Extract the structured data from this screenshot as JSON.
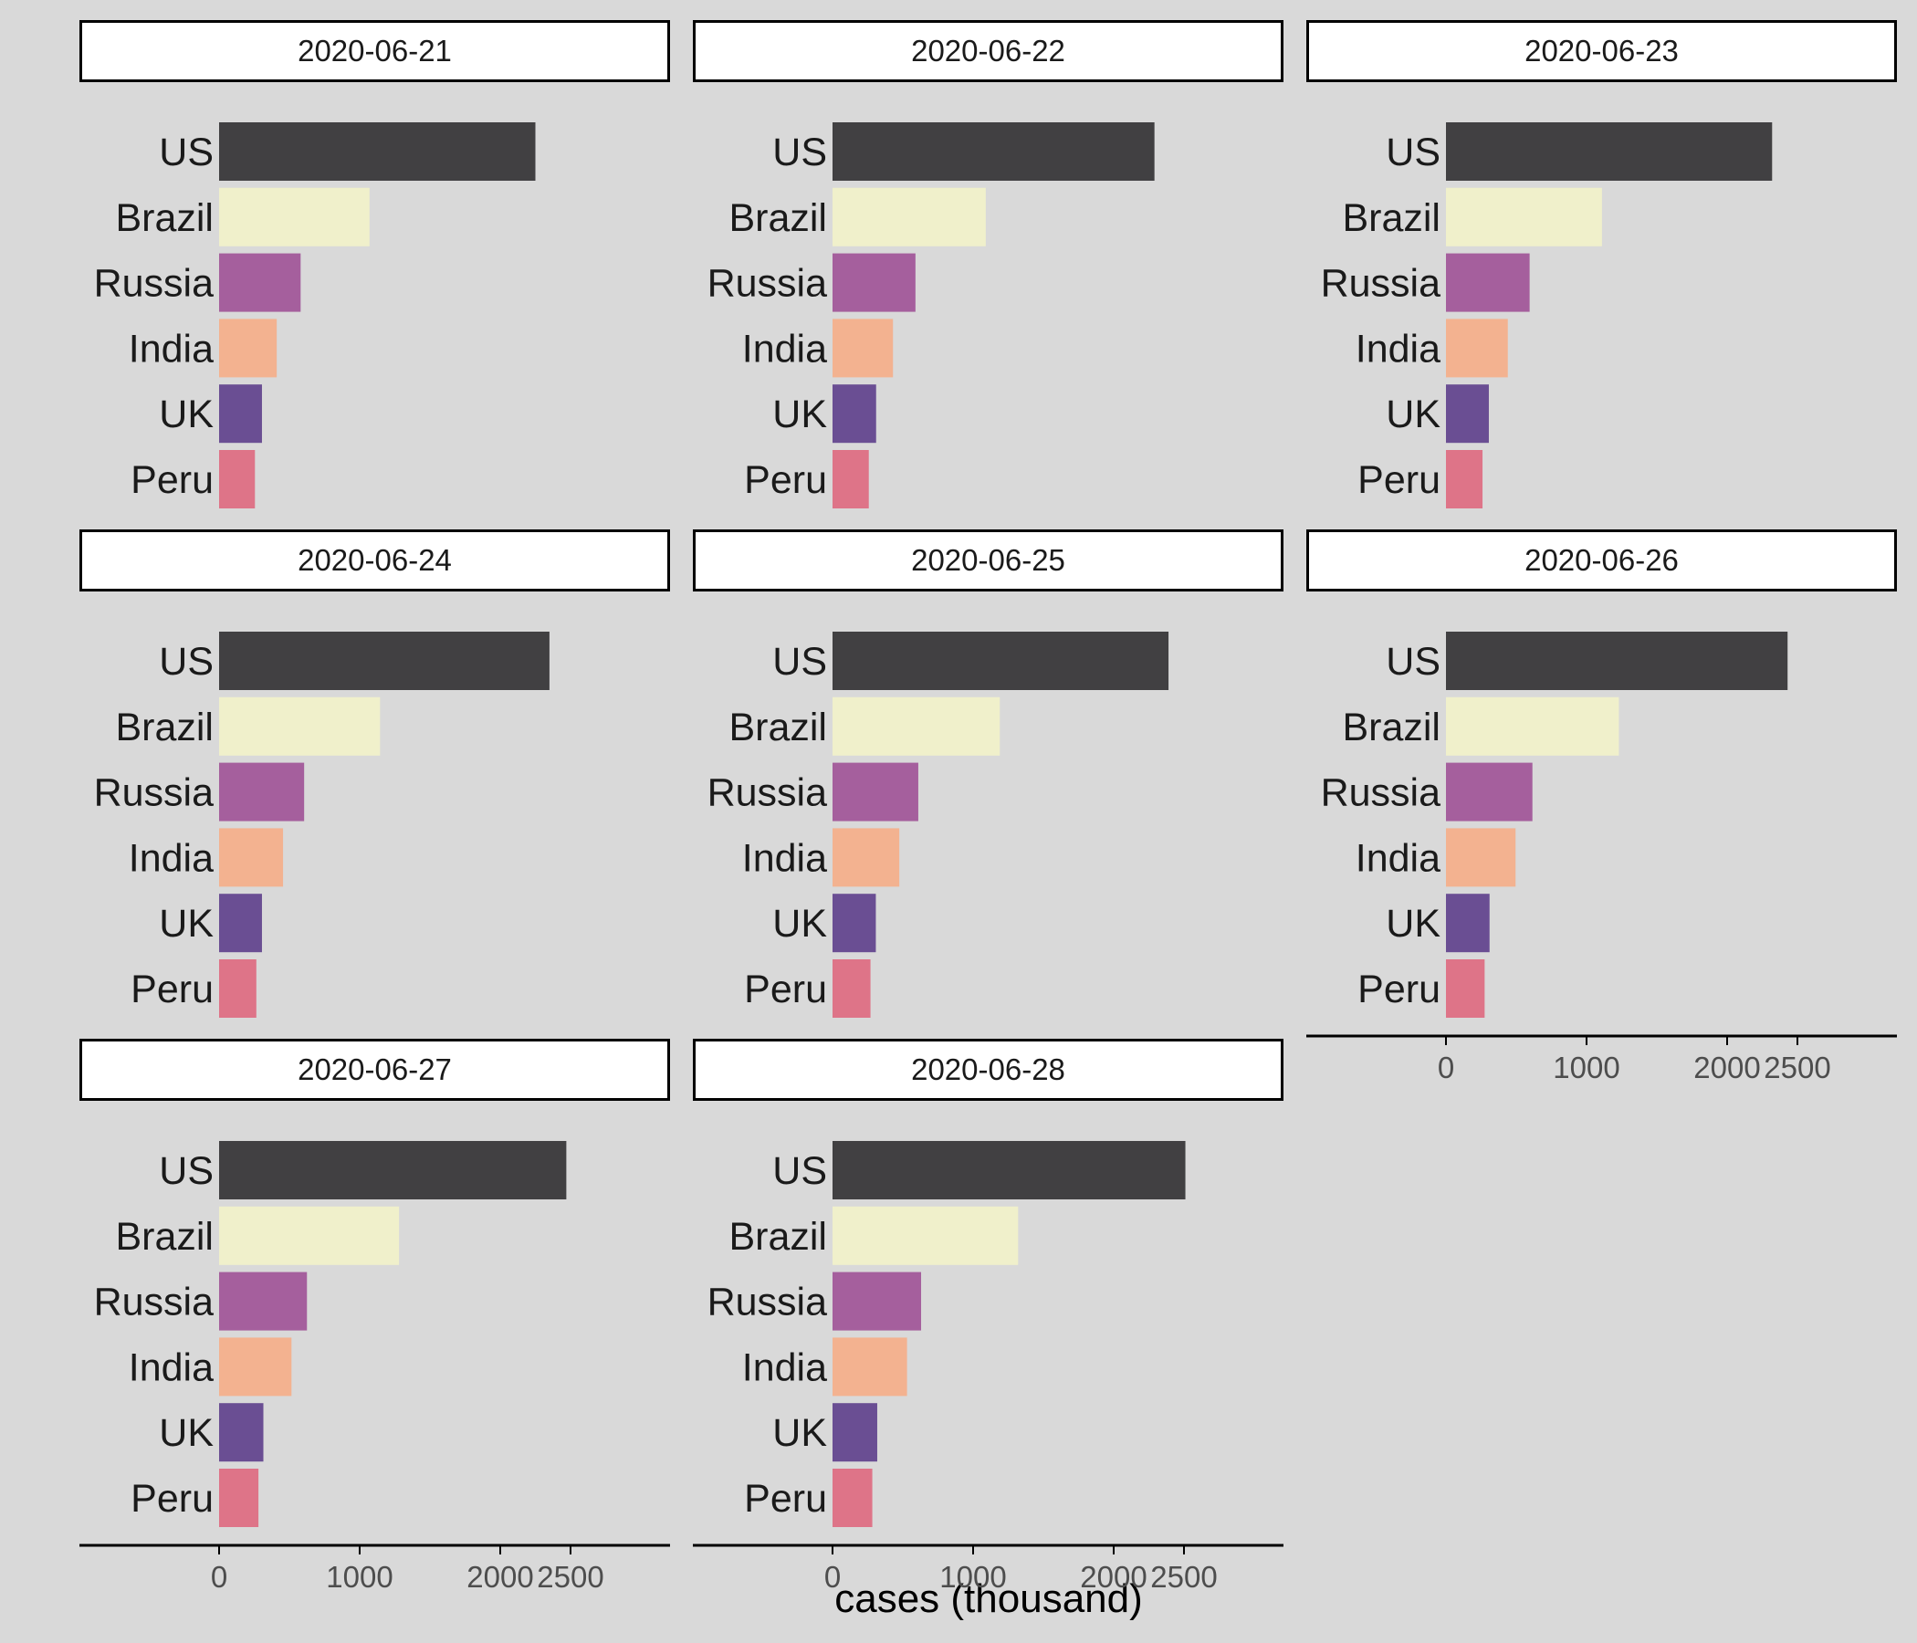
{
  "chart_data": {
    "type": "bar",
    "orientation": "horizontal",
    "facet_by": "date",
    "categories": [
      "US",
      "Brazil",
      "Russia",
      "India",
      "UK",
      "Peru"
    ],
    "category_colors": {
      "US": "#414042",
      "Brazil": "#f0f0cb",
      "Russia": "#a55f9d",
      "India": "#f3b290",
      "UK": "#6a4e93",
      "Peru": "#de7488"
    },
    "panels": [
      {
        "date": "2020-06-21",
        "values": [
          2250,
          1070,
          580,
          410,
          305,
          255
        ]
      },
      {
        "date": "2020-06-22",
        "values": [
          2290,
          1090,
          590,
          430,
          310,
          258
        ]
      },
      {
        "date": "2020-06-23",
        "values": [
          2320,
          1110,
          595,
          440,
          305,
          260
        ]
      },
      {
        "date": "2020-06-24",
        "values": [
          2350,
          1145,
          605,
          455,
          305,
          265
        ]
      },
      {
        "date": "2020-06-25",
        "values": [
          2390,
          1190,
          610,
          475,
          308,
          270
        ]
      },
      {
        "date": "2020-06-26",
        "values": [
          2430,
          1230,
          615,
          495,
          310,
          275
        ]
      },
      {
        "date": "2020-06-27",
        "values": [
          2470,
          1280,
          625,
          515,
          315,
          280
        ]
      },
      {
        "date": "2020-06-28",
        "values": [
          2510,
          1320,
          630,
          530,
          318,
          283
        ]
      }
    ],
    "x_ticks": [
      0,
      1000,
      2000,
      2500
    ],
    "xlabel": "cases (thousand)",
    "ylabel": "",
    "title": "",
    "grid": false,
    "legend": "none",
    "colors": {
      "background": "#d9d9d9",
      "strip_fill": "#ffffff",
      "strip_border": "#000000",
      "axis_line": "#000000",
      "tick_text": "#4d4d4d",
      "category_text": "#1a1a1a"
    }
  }
}
